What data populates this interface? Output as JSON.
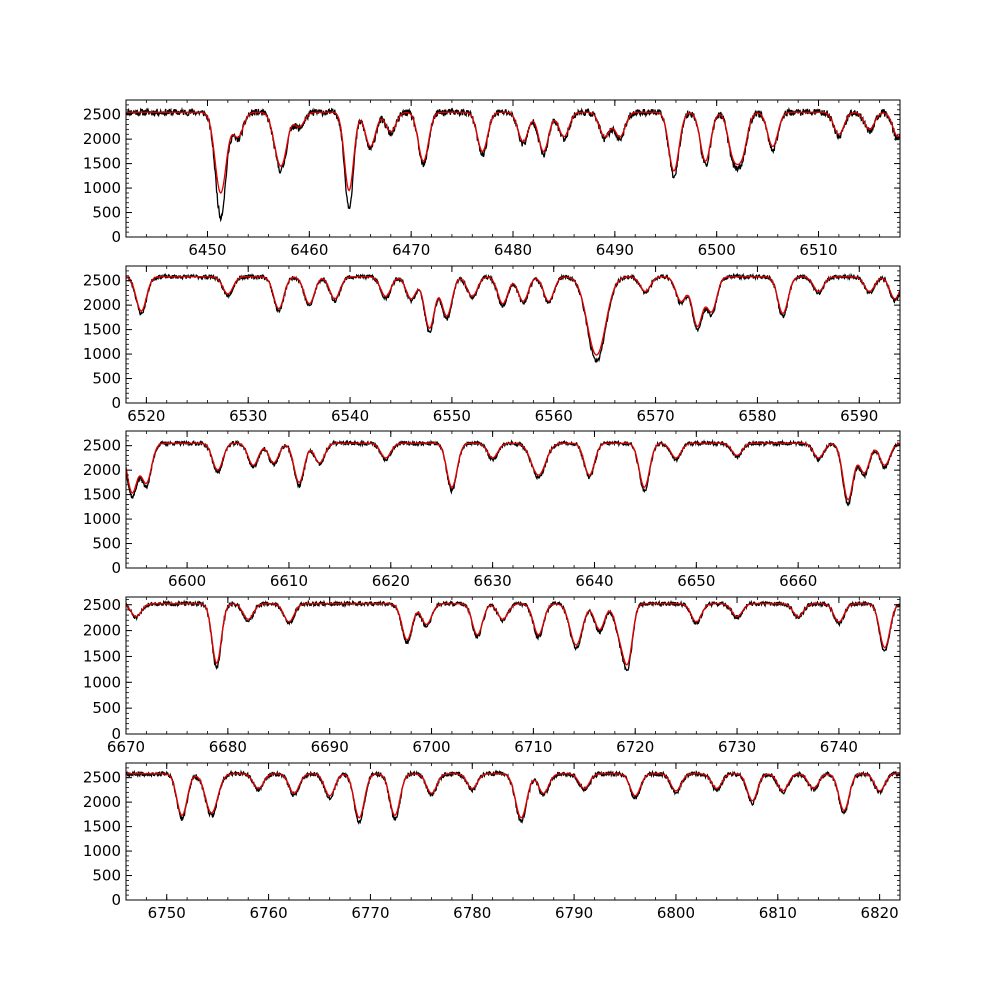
{
  "chart_data": [
    {
      "type": "line",
      "xlim": [
        6442,
        6518
      ],
      "ylim": [
        0,
        2800
      ],
      "xticks": [
        6450,
        6460,
        6470,
        6480,
        6490,
        6500,
        6510
      ],
      "yticks": [
        0,
        500,
        1000,
        1500,
        2000,
        2500
      ],
      "continuum": 2550,
      "lines": [
        [
          6451.3,
          1650,
          0.55
        ],
        [
          6453.0,
          500,
          0.5
        ],
        [
          6456.8,
          500,
          0.5
        ],
        [
          6457.4,
          800,
          0.5
        ],
        [
          6459.0,
          300,
          0.5
        ],
        [
          6463.9,
          1600,
          0.45
        ],
        [
          6466.0,
          700,
          0.5
        ],
        [
          6468.0,
          400,
          0.5
        ],
        [
          6471.2,
          1000,
          0.5
        ],
        [
          6477.0,
          800,
          0.5
        ],
        [
          6481.0,
          600,
          0.5
        ],
        [
          6483.0,
          800,
          0.5
        ],
        [
          6485.0,
          500,
          0.5
        ],
        [
          6489.0,
          500,
          0.5
        ],
        [
          6490.5,
          500,
          0.5
        ],
        [
          6495.8,
          1200,
          0.5
        ],
        [
          6498.9,
          1000,
          0.5
        ],
        [
          6501.6,
          800,
          0.5
        ],
        [
          6502.5,
          800,
          0.5
        ],
        [
          6505.5,
          700,
          0.5
        ],
        [
          6512.0,
          450,
          0.5
        ],
        [
          6515.0,
          350,
          0.5
        ],
        [
          6517.8,
          500,
          0.5
        ]
      ],
      "series": [
        {
          "name": "",
          "color": "#000000",
          "noise": 70,
          "seed": 11
        },
        {
          "name": "",
          "color": "#e60000",
          "noise": 0,
          "seed": 0
        }
      ],
      "notes_fit_diff": [
        [
          6451.3,
          -350
        ],
        [
          6463.9,
          -200
        ]
      ]
    },
    {
      "type": "line",
      "xlim": [
        6518,
        6594
      ],
      "ylim": [
        0,
        2800
      ],
      "xticks": [
        6520,
        6530,
        6540,
        6550,
        6560,
        6570,
        6580,
        6590
      ],
      "yticks": [
        0,
        500,
        1000,
        1500,
        2000,
        2500
      ],
      "continuum": 2580,
      "lines": [
        [
          6519.5,
          700,
          0.5
        ],
        [
          6528.0,
          350,
          0.5
        ],
        [
          6533.0,
          650,
          0.5
        ],
        [
          6536.0,
          550,
          0.5
        ],
        [
          6538.5,
          450,
          0.5
        ],
        [
          6543.5,
          400,
          0.5
        ],
        [
          6546.0,
          450,
          0.5
        ],
        [
          6547.8,
          1050,
          0.5
        ],
        [
          6549.5,
          800,
          0.5
        ],
        [
          6552.0,
          400,
          0.5
        ],
        [
          6555.0,
          550,
          0.5
        ],
        [
          6557.0,
          500,
          0.5
        ],
        [
          6559.5,
          500,
          0.5
        ],
        [
          6564.2,
          1600,
          0.9
        ],
        [
          6569.0,
          300,
          0.5
        ],
        [
          6572.5,
          500,
          0.5
        ],
        [
          6574.1,
          1000,
          0.5
        ],
        [
          6575.5,
          700,
          0.5
        ],
        [
          6582.5,
          750,
          0.5
        ],
        [
          6586.0,
          300,
          0.5
        ],
        [
          6591.0,
          300,
          0.5
        ],
        [
          6593.5,
          450,
          0.5
        ]
      ],
      "series": [
        {
          "name": "",
          "color": "#000000",
          "noise": 40,
          "seed": 23
        },
        {
          "name": "",
          "color": "#e60000",
          "noise": 0,
          "seed": 0
        }
      ]
    },
    {
      "type": "line",
      "xlim": [
        6594,
        6670
      ],
      "ylim": [
        0,
        2800
      ],
      "xticks": [
        6600,
        6610,
        6620,
        6630,
        6640,
        6650,
        6660
      ],
      "yticks": [
        0,
        500,
        1000,
        1500,
        2000,
        2500
      ],
      "continuum": 2550,
      "lines": [
        [
          6594.6,
          1000,
          0.5
        ],
        [
          6596.0,
          800,
          0.5
        ],
        [
          6603.0,
          550,
          0.5
        ],
        [
          6606.5,
          450,
          0.5
        ],
        [
          6608.5,
          400,
          0.5
        ],
        [
          6611.0,
          800,
          0.5
        ],
        [
          6613.0,
          400,
          0.5
        ],
        [
          6619.5,
          300,
          0.5
        ],
        [
          6626.0,
          900,
          0.5
        ],
        [
          6630.0,
          300,
          0.5
        ],
        [
          6634.5,
          650,
          0.7
        ],
        [
          6639.5,
          650,
          0.5
        ],
        [
          6644.9,
          900,
          0.5
        ],
        [
          6648.0,
          300,
          0.5
        ],
        [
          6654.0,
          250,
          0.5
        ],
        [
          6662.0,
          300,
          0.5
        ],
        [
          6664.9,
          1150,
          0.5
        ],
        [
          6666.5,
          600,
          0.5
        ],
        [
          6668.5,
          450,
          0.5
        ]
      ],
      "series": [
        {
          "name": "",
          "color": "#000000",
          "noise": 40,
          "seed": 37
        },
        {
          "name": "",
          "color": "#e60000",
          "noise": 0,
          "seed": 0
        }
      ]
    },
    {
      "type": "line",
      "xlim": [
        6670,
        6746
      ],
      "ylim": [
        0,
        2650
      ],
      "xticks": [
        6670,
        6680,
        6690,
        6700,
        6710,
        6720,
        6730,
        6740
      ],
      "yticks": [
        0,
        500,
        1000,
        1500,
        2000,
        2500
      ],
      "continuum": 2520,
      "lines": [
        [
          6671.0,
          250,
          0.5
        ],
        [
          6678.9,
          1150,
          0.45
        ],
        [
          6682.0,
          300,
          0.5
        ],
        [
          6686.0,
          350,
          0.5
        ],
        [
          6697.6,
          700,
          0.5
        ],
        [
          6699.5,
          400,
          0.5
        ],
        [
          6704.5,
          600,
          0.5
        ],
        [
          6707.0,
          300,
          0.5
        ],
        [
          6710.5,
          600,
          0.5
        ],
        [
          6714.2,
          800,
          0.6
        ],
        [
          6716.5,
          500,
          0.5
        ],
        [
          6718.5,
          550,
          0.5
        ],
        [
          6719.3,
          1000,
          0.45
        ],
        [
          6726.0,
          350,
          0.5
        ],
        [
          6730.0,
          250,
          0.5
        ],
        [
          6736.0,
          250,
          0.5
        ],
        [
          6740.0,
          350,
          0.5
        ],
        [
          6744.5,
          850,
          0.5
        ]
      ],
      "series": [
        {
          "name": "",
          "color": "#000000",
          "noise": 40,
          "seed": 51
        },
        {
          "name": "",
          "color": "#e60000",
          "noise": 0,
          "seed": 0
        }
      ]
    },
    {
      "type": "line",
      "xlim": [
        6746,
        6822
      ],
      "ylim": [
        0,
        2800
      ],
      "xticks": [
        6750,
        6760,
        6770,
        6780,
        6790,
        6800,
        6810,
        6820
      ],
      "yticks": [
        0,
        500,
        1000,
        1500,
        2000,
        2500
      ],
      "continuum": 2580,
      "lines": [
        [
          6751.5,
          850,
          0.5
        ],
        [
          6754.4,
          800,
          0.6
        ],
        [
          6759.0,
          300,
          0.5
        ],
        [
          6762.5,
          400,
          0.5
        ],
        [
          6766.0,
          450,
          0.5
        ],
        [
          6768.9,
          900,
          0.5
        ],
        [
          6772.4,
          850,
          0.5
        ],
        [
          6776.0,
          400,
          0.5
        ],
        [
          6780.0,
          300,
          0.5
        ],
        [
          6784.8,
          900,
          0.55
        ],
        [
          6787.0,
          400,
          0.5
        ],
        [
          6791.0,
          300,
          0.5
        ],
        [
          6796.0,
          450,
          0.5
        ],
        [
          6800.0,
          350,
          0.5
        ],
        [
          6804.0,
          300,
          0.5
        ],
        [
          6807.5,
          550,
          0.5
        ],
        [
          6810.5,
          350,
          0.5
        ],
        [
          6813.5,
          300,
          0.5
        ],
        [
          6816.5,
          750,
          0.5
        ],
        [
          6820.0,
          350,
          0.5
        ]
      ],
      "series": [
        {
          "name": "",
          "color": "#000000",
          "noise": 45,
          "seed": 67
        },
        {
          "name": "",
          "color": "#e60000",
          "noise": 0,
          "seed": 0
        }
      ]
    }
  ]
}
